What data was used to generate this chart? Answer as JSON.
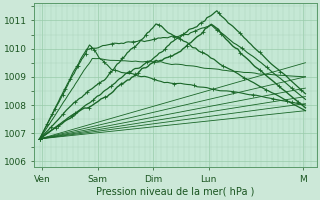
{
  "bg_color": "#cce8d8",
  "plot_bg_color": "#c5e8d5",
  "grid_color_major": "#99ccaa",
  "grid_color_minor": "#aad4bb",
  "line_color": "#1a6628",
  "title": "Pression niveau de la mer( hPa )",
  "yticks": [
    1006,
    1007,
    1008,
    1009,
    1010,
    1011
  ],
  "ylim": [
    1005.8,
    1011.6
  ],
  "xlim": [
    0.0,
    5.1
  ],
  "xtick_labels": [
    "Ven",
    "Sam",
    "Dim",
    "Lun",
    "M"
  ],
  "xtick_positions": [
    0.15,
    1.15,
    2.15,
    3.15,
    4.85
  ],
  "origin_x": 0.1,
  "origin_y": 1006.8
}
